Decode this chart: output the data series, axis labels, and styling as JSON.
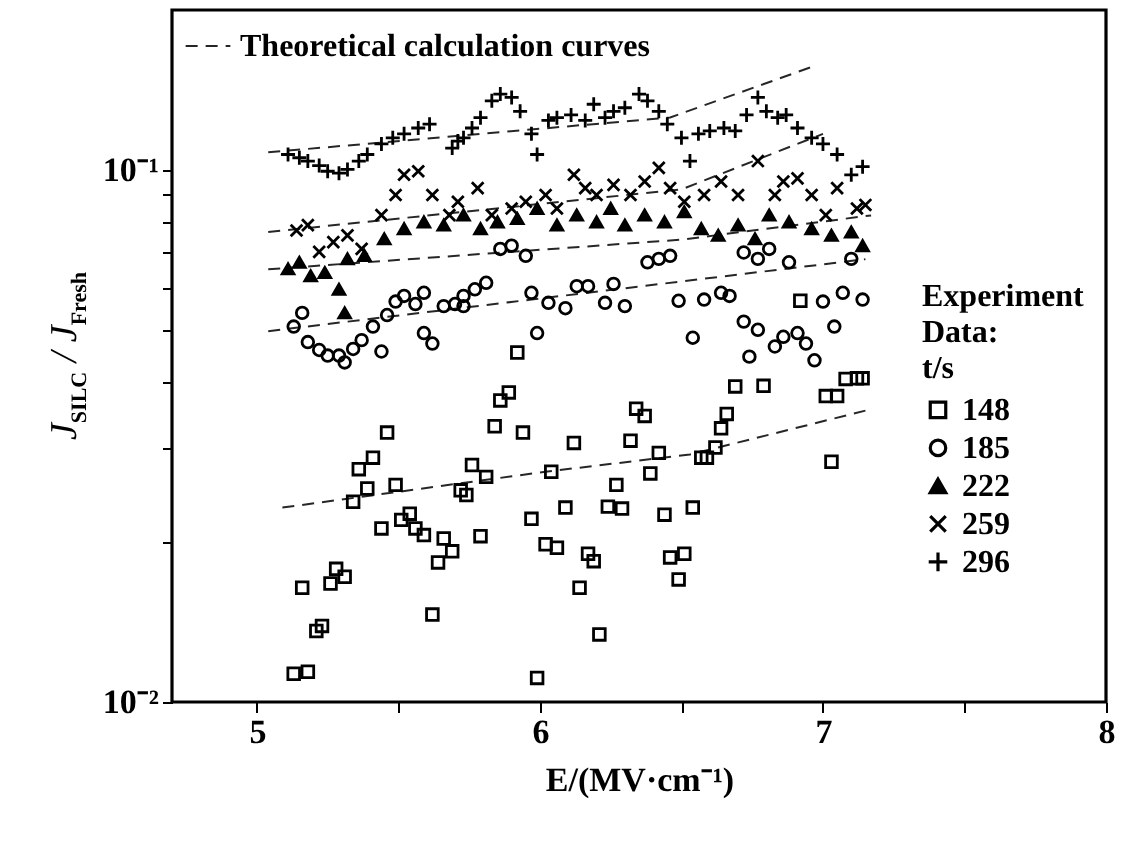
{
  "chart_data": {
    "type": "scatter",
    "xlabel": "E/(MV·cm⁻¹)",
    "ylabel": "J$_{SILC}$ / J$_{Fresh}$",
    "legend_title": "Experiment\nData:\nt/s",
    "legend": "right",
    "log": "y",
    "xlim": [
      4.7,
      8
    ],
    "xticks": [
      5,
      {
        "value": 5.5,
        "label": null
      },
      6,
      {
        "value": 6.5,
        "label": null
      },
      7,
      {
        "value": 7.5,
        "label": null
      },
      8
    ],
    "ylim": [
      0.01,
      0.2
    ],
    "yticks": [
      {
        "value": 0.01,
        "label": "10⁻²"
      },
      {
        "value": 0.02,
        "label": null
      },
      {
        "value": 0.03,
        "label": null
      },
      {
        "value": 0.04,
        "label": null
      },
      {
        "value": 0.05,
        "label": null
      },
      {
        "value": 0.06,
        "label": null
      },
      {
        "value": 0.07,
        "label": null
      },
      {
        "value": 0.08,
        "label": null
      },
      {
        "value": 0.09,
        "label": null
      },
      {
        "value": 0.1,
        "label": "10⁻¹"
      }
    ],
    "series": [
      {
        "name": "148",
        "color": "#000000",
        "marker": "square",
        "x": [
          5.13,
          5.16,
          5.18,
          5.21,
          5.23,
          5.26,
          5.28,
          5.31,
          5.34,
          5.36,
          5.39,
          5.41,
          5.44,
          5.46,
          5.49,
          5.51,
          5.54,
          5.56,
          5.59,
          5.62,
          5.64,
          5.66,
          5.69,
          5.72,
          5.74,
          5.76,
          5.79,
          5.81,
          5.84,
          5.86,
          5.89,
          5.92,
          5.94,
          5.97,
          5.99,
          6.02,
          6.04,
          6.06,
          6.09,
          6.12,
          6.14,
          6.17,
          6.19,
          6.21,
          6.24,
          6.27,
          6.29,
          6.32,
          6.34,
          6.37,
          6.39,
          6.42,
          6.44,
          6.46,
          6.49,
          6.51,
          6.54,
          6.57,
          6.59,
          6.62,
          6.64,
          6.66,
          6.69,
          6.79,
          6.92,
          7.01,
          7.03,
          7.05,
          7.08,
          7.12,
          7.14
        ],
        "values": [
          0.0113,
          0.0164,
          0.0114,
          0.0136,
          0.0139,
          0.0167,
          0.0178,
          0.0172,
          0.0238,
          0.0274,
          0.0252,
          0.0288,
          0.0212,
          0.0321,
          0.0256,
          0.022,
          0.0226,
          0.0212,
          0.0206,
          0.0146,
          0.0183,
          0.0203,
          0.0192,
          0.025,
          0.0245,
          0.0279,
          0.0205,
          0.0265,
          0.033,
          0.0369,
          0.0382,
          0.0454,
          0.0321,
          0.0221,
          0.0111,
          0.0198,
          0.0271,
          0.0195,
          0.0232,
          0.0307,
          0.0164,
          0.019,
          0.0184,
          0.0134,
          0.0233,
          0.0256,
          0.0231,
          0.031,
          0.0356,
          0.0345,
          0.0269,
          0.0294,
          0.0225,
          0.0187,
          0.017,
          0.019,
          0.0232,
          0.0288,
          0.0288,
          0.0301,
          0.0327,
          0.0348,
          0.0392,
          0.0393,
          0.0568,
          0.0376,
          0.0283,
          0.0376,
          0.0405,
          0.0406,
          0.0406
        ]
      },
      {
        "name": "185",
        "color": "#000000",
        "marker": "circle",
        "x": [
          5.13,
          5.16,
          5.18,
          5.22,
          5.25,
          5.29,
          5.31,
          5.34,
          5.37,
          5.41,
          5.44,
          5.46,
          5.49,
          5.52,
          5.56,
          5.59,
          5.59,
          5.62,
          5.66,
          5.7,
          5.73,
          5.73,
          5.77,
          5.81,
          5.86,
          5.9,
          5.95,
          5.97,
          5.99,
          6.03,
          6.09,
          6.13,
          6.17,
          6.23,
          6.26,
          6.3,
          6.38,
          6.42,
          6.46,
          6.49,
          6.54,
          6.58,
          6.64,
          6.67,
          6.72,
          6.72,
          6.74,
          6.77,
          6.77,
          6.81,
          6.83,
          6.86,
          6.88,
          6.91,
          6.94,
          6.97,
          7.0,
          7.04,
          7.07,
          7.1,
          7.14
        ],
        "values": [
          0.0508,
          0.0539,
          0.0475,
          0.0459,
          0.0448,
          0.0448,
          0.0435,
          0.0461,
          0.0479,
          0.0508,
          0.0456,
          0.0534,
          0.0566,
          0.058,
          0.056,
          0.0494,
          0.0588,
          0.0472,
          0.0555,
          0.056,
          0.0555,
          0.058,
          0.0597,
          0.0614,
          0.0711,
          0.0721,
          0.069,
          0.0588,
          0.0494,
          0.0563,
          0.055,
          0.0605,
          0.0605,
          0.0563,
          0.0611,
          0.0555,
          0.0671,
          0.0681,
          0.069,
          0.0568,
          0.0484,
          0.0571,
          0.0588,
          0.058,
          0.0519,
          0.07,
          0.0446,
          0.0501,
          0.0681,
          0.0711,
          0.0466,
          0.0486,
          0.0671,
          0.0494,
          0.0472,
          0.0439,
          0.0566,
          0.0508,
          0.0588,
          0.0681,
          0.0571
        ]
      },
      {
        "name": "222",
        "color": "#000000",
        "marker": "triangle",
        "x": [
          5.11,
          5.15,
          5.19,
          5.24,
          5.29,
          5.31,
          5.32,
          5.38,
          5.45,
          5.52,
          5.59,
          5.66,
          5.73,
          5.79,
          5.85,
          5.92,
          5.99,
          6.06,
          6.13,
          6.2,
          6.25,
          6.3,
          6.37,
          6.44,
          6.51,
          6.57,
          6.63,
          6.7,
          6.76,
          6.81,
          6.88,
          6.96,
          7.03,
          7.1,
          7.14
        ],
        "values": [
          0.0652,
          0.0671,
          0.0633,
          0.0642,
          0.0597,
          0.0539,
          0.0681,
          0.0691,
          0.0743,
          0.0776,
          0.0799,
          0.0788,
          0.0823,
          0.0776,
          0.0799,
          0.0811,
          0.0847,
          0.0788,
          0.0823,
          0.0799,
          0.0847,
          0.0788,
          0.0823,
          0.0799,
          0.0835,
          0.0776,
          0.0754,
          0.0788,
          0.0743,
          0.0823,
          0.0799,
          0.0776,
          0.0754,
          0.0765,
          0.0721
        ]
      },
      {
        "name": "259",
        "color": "#000000",
        "marker": "cross",
        "x": [
          5.14,
          5.18,
          5.22,
          5.27,
          5.32,
          5.37,
          5.44,
          5.49,
          5.52,
          5.57,
          5.62,
          5.68,
          5.71,
          5.78,
          5.83,
          5.9,
          5.95,
          6.02,
          6.06,
          6.12,
          6.16,
          6.2,
          6.26,
          6.32,
          6.37,
          6.42,
          6.46,
          6.51,
          6.58,
          6.64,
          6.7,
          6.77,
          6.83,
          6.86,
          6.91,
          6.96,
          7.01,
          7.05,
          7.12,
          7.15
        ],
        "values": [
          0.077,
          0.0788,
          0.0702,
          0.0732,
          0.0754,
          0.0711,
          0.0823,
          0.0898,
          0.098,
          0.0995,
          0.0898,
          0.0823,
          0.0872,
          0.0925,
          0.0823,
          0.0847,
          0.0872,
          0.0898,
          0.0847,
          0.098,
          0.0925,
          0.0898,
          0.0938,
          0.0898,
          0.0952,
          0.101,
          0.0925,
          0.0872,
          0.0898,
          0.0952,
          0.0898,
          0.104,
          0.0898,
          0.0952,
          0.0965,
          0.0898,
          0.0823,
          0.0925,
          0.0847,
          0.086
        ]
      },
      {
        "name": "296",
        "color": "#000000",
        "marker": "plus",
        "x": [
          5.11,
          5.15,
          5.18,
          5.22,
          5.25,
          5.29,
          5.32,
          5.36,
          5.39,
          5.44,
          5.48,
          5.52,
          5.57,
          5.61,
          5.69,
          5.71,
          5.73,
          5.76,
          5.79,
          5.83,
          5.86,
          5.9,
          5.93,
          5.97,
          5.99,
          6.03,
          6.06,
          6.11,
          6.16,
          6.19,
          6.23,
          6.26,
          6.3,
          6.35,
          6.38,
          6.42,
          6.45,
          6.5,
          6.53,
          6.56,
          6.6,
          6.65,
          6.69,
          6.73,
          6.77,
          6.8,
          6.84,
          6.87,
          6.91,
          6.96,
          7.0,
          7.05,
          7.1,
          7.14
        ],
        "values": [
          0.107,
          0.1055,
          0.104,
          0.102,
          0.0995,
          0.0987,
          0.1003,
          0.104,
          0.107,
          0.112,
          0.115,
          0.117,
          0.12,
          0.122,
          0.11,
          0.1134,
          0.115,
          0.12,
          0.1255,
          0.135,
          0.139,
          0.137,
          0.129,
          0.117,
          0.107,
          0.124,
          0.1255,
          0.127,
          0.124,
          0.133,
          0.1255,
          0.129,
          0.131,
          0.139,
          0.135,
          0.129,
          0.122,
          0.115,
          0.104,
          0.117,
          0.1185,
          0.12,
          0.1185,
          0.127,
          0.137,
          0.129,
          0.1255,
          0.127,
          0.12,
          0.115,
          0.112,
          0.107,
          0.098,
          0.1015
        ]
      },
      {
        "type": "line",
        "name": "Theoretical calculation curves",
        "color": "#000000",
        "line_style": "dashed",
        "x": [
          5.09,
          6.02,
          6.53,
          7.15
        ],
        "values": [
          0.0232,
          0.0271,
          0.0292,
          0.0353
        ]
      },
      {
        "type": "line",
        "color": "#000000",
        "line_style": "dashed",
        "x": [
          5.04,
          5.97,
          7.15
        ],
        "values": [
          0.0498,
          0.0571,
          0.068
        ]
      },
      {
        "type": "line",
        "color": "#000000",
        "line_style": "dashed",
        "x": [
          5.04,
          6.5,
          7.17
        ],
        "values": [
          0.0651,
          0.074,
          0.0822
        ]
      },
      {
        "type": "line",
        "color": "#000000",
        "line_style": "dashed",
        "x": [
          5.04,
          6.5,
          7.0
        ],
        "values": [
          0.0765,
          0.092,
          0.117
        ]
      },
      {
        "type": "line",
        "color": "#000000",
        "line_style": "dashed",
        "x": [
          5.04,
          6.46,
          6.97
        ],
        "values": [
          0.108,
          0.1256,
          0.157
        ]
      }
    ]
  }
}
